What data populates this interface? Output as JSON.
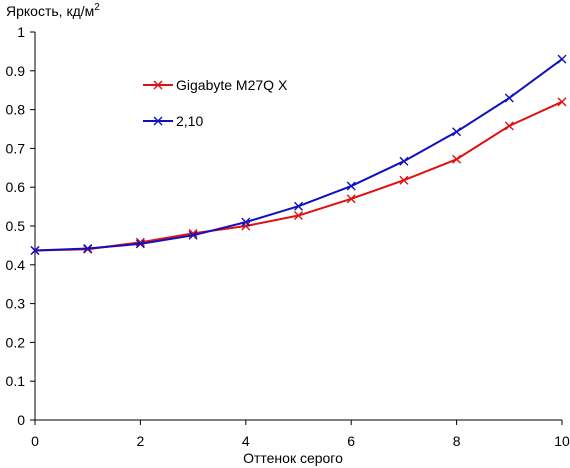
{
  "chart_data": {
    "type": "line",
    "title": "",
    "ylabel": "Яркость, кд/м",
    "ylabel_superscript": "2",
    "xlabel": "Оттенок серого",
    "xlim": [
      0,
      10
    ],
    "ylim": [
      0,
      1
    ],
    "x_ticks": [
      0,
      2,
      4,
      6,
      8,
      10
    ],
    "y_ticks": [
      0,
      0.1,
      0.2,
      0.3,
      0.4,
      0.5,
      0.6,
      0.7,
      0.8,
      0.9,
      1
    ],
    "grid": false,
    "legend_position": "upper-left",
    "series": [
      {
        "name": "Gigabyte M27Q X",
        "color": "#e01010",
        "marker": "x",
        "x": [
          0,
          1,
          2,
          3,
          4,
          5,
          6,
          7,
          8,
          9,
          10
        ],
        "values": [
          0.437,
          0.44,
          0.458,
          0.481,
          0.5,
          0.527,
          0.57,
          0.618,
          0.672,
          0.758,
          0.82
        ]
      },
      {
        "name": "2,10",
        "color": "#1010c0",
        "marker": "x",
        "x": [
          0,
          1,
          2,
          3,
          4,
          5,
          6,
          7,
          8,
          9,
          10
        ],
        "values": [
          0.437,
          0.442,
          0.454,
          0.476,
          0.51,
          0.551,
          0.603,
          0.667,
          0.743,
          0.83,
          0.93
        ]
      }
    ]
  }
}
